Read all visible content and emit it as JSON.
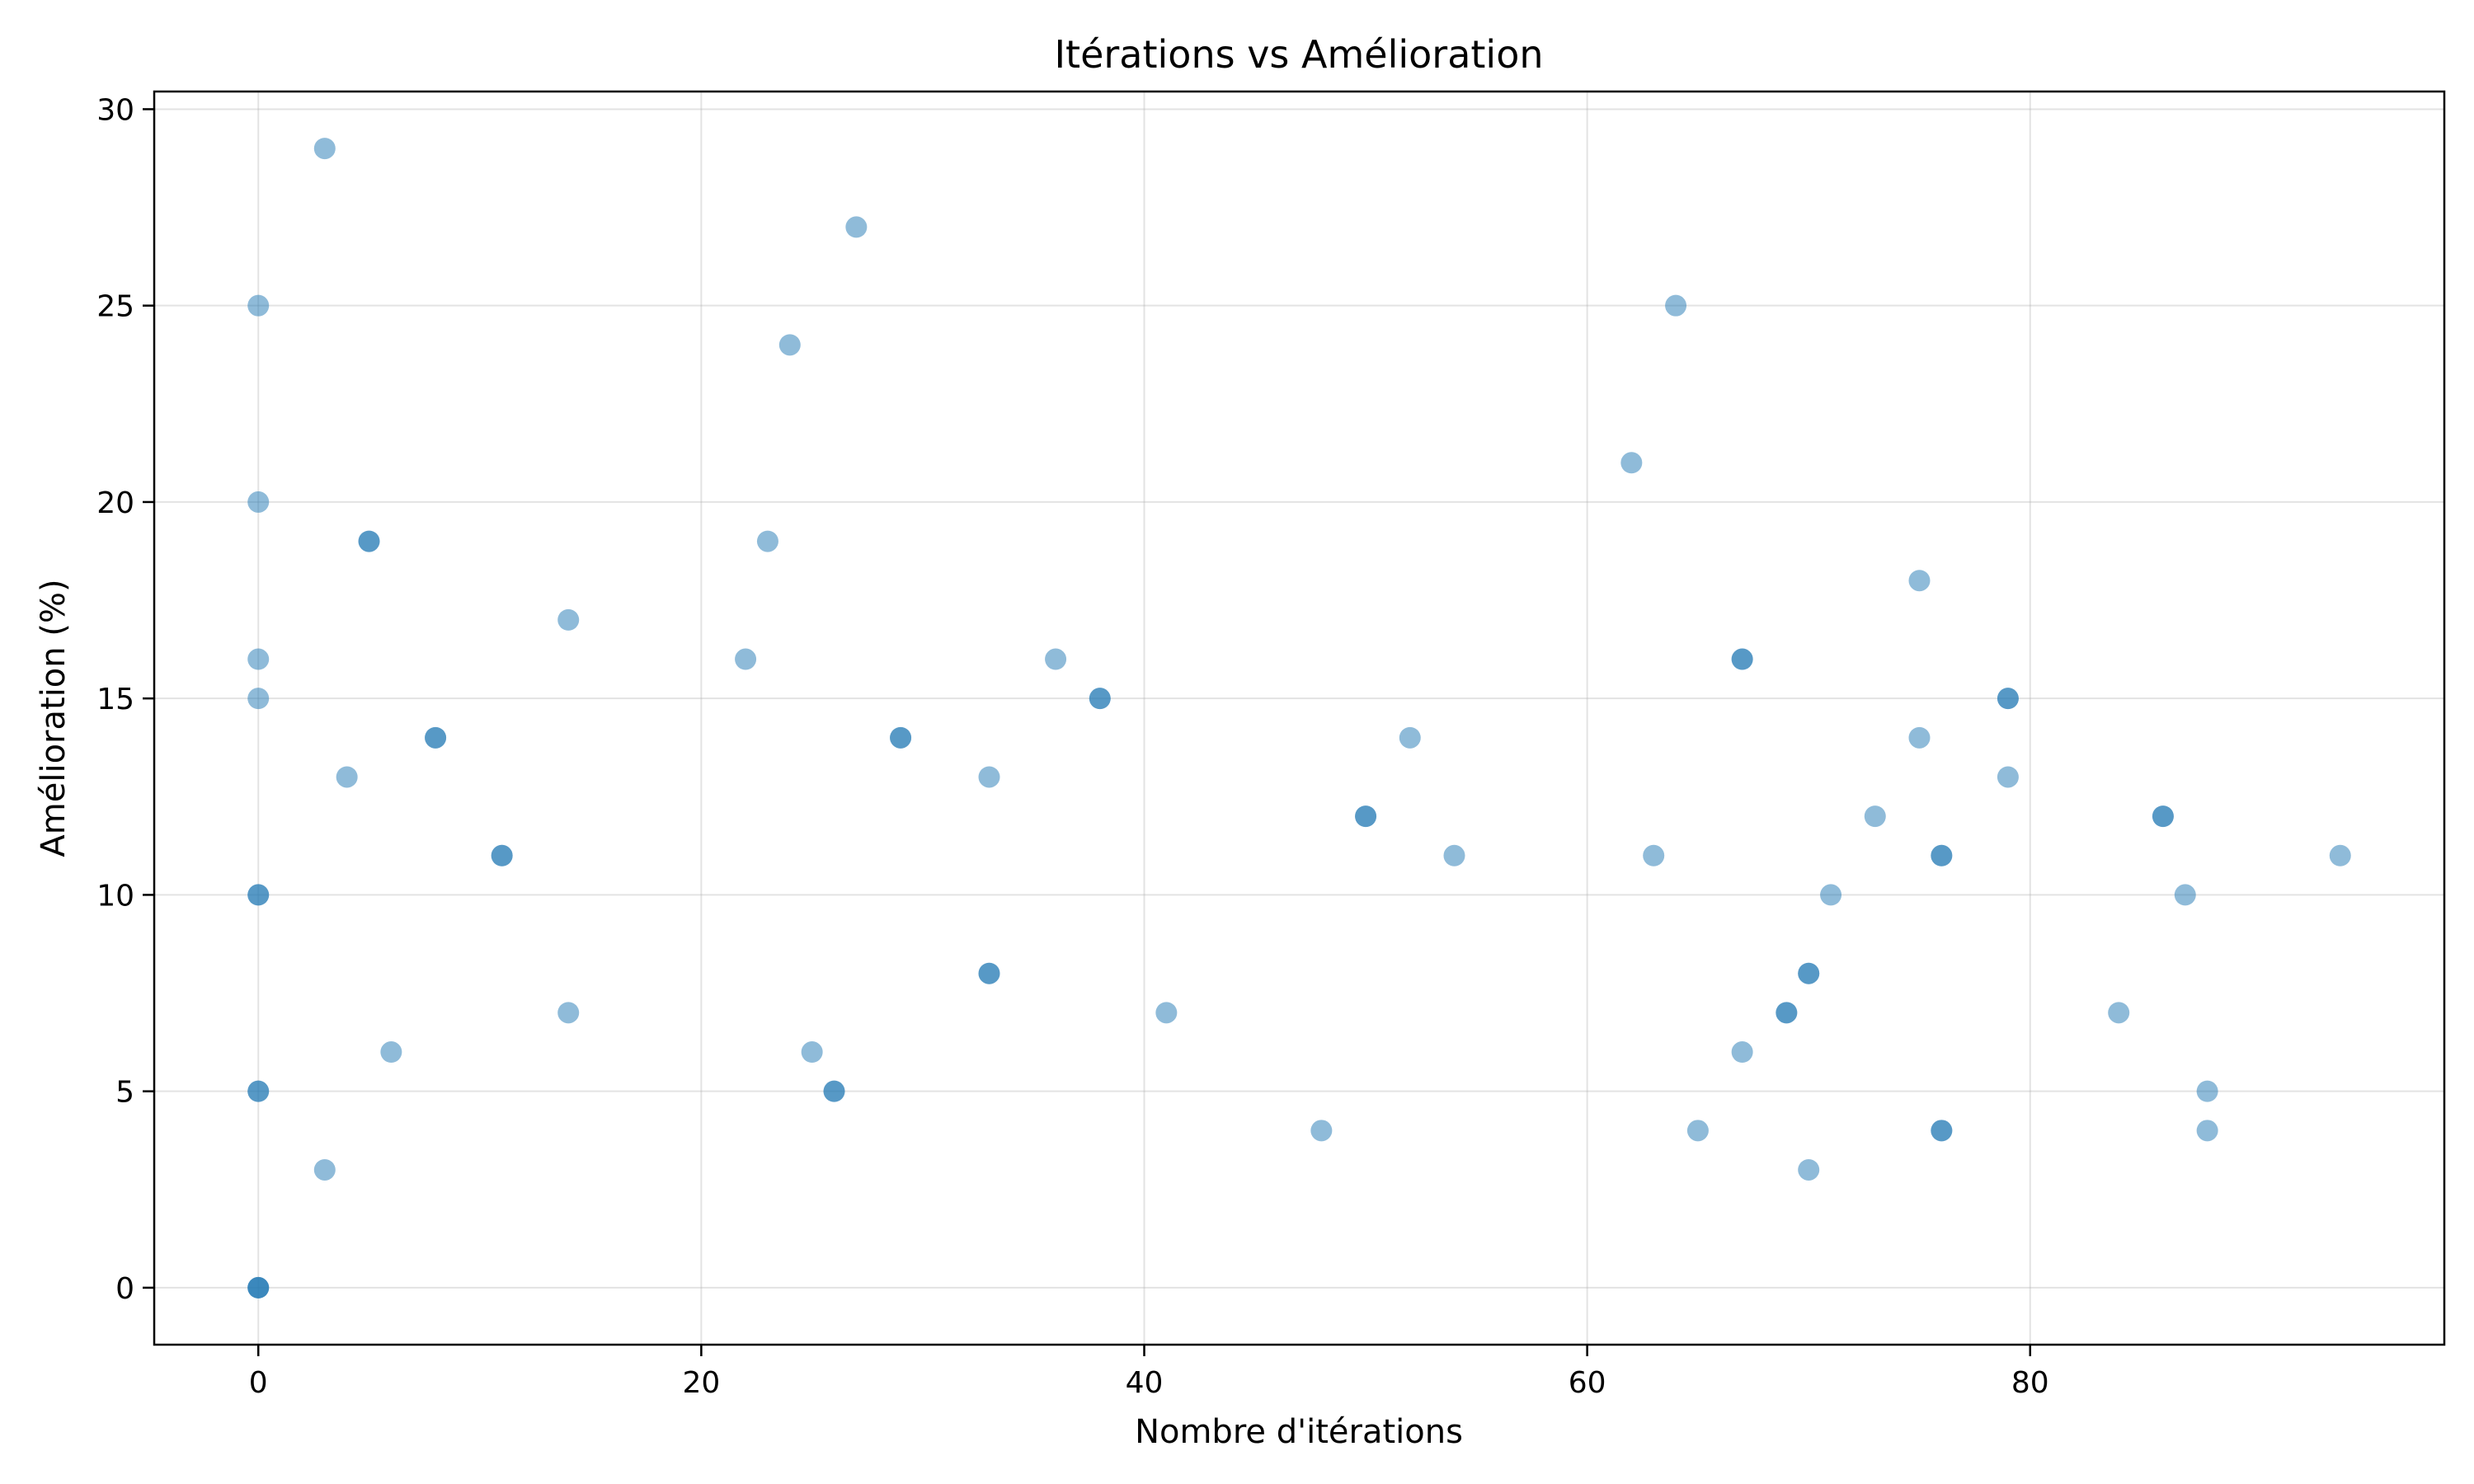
{
  "chart_data": {
    "type": "scatter",
    "title": "Itérations vs Amélioration",
    "xlabel": "Nombre d'itérations",
    "ylabel": "Amélioration (%)",
    "xlim": [
      -4.7,
      98.7
    ],
    "ylim": [
      -1.45,
      30.45
    ],
    "xticks": [
      0,
      20,
      40,
      60,
      80
    ],
    "yticks": [
      0,
      5,
      10,
      15,
      20,
      25,
      30
    ],
    "grid": true,
    "color": "#1f77b4",
    "points": [
      [
        0,
        25
      ],
      [
        0,
        20
      ],
      [
        0,
        16
      ],
      [
        0,
        15
      ],
      [
        0,
        10
      ],
      [
        0,
        10
      ],
      [
        0,
        5
      ],
      [
        0,
        5
      ],
      [
        0,
        0
      ],
      [
        0,
        0
      ],
      [
        0,
        0
      ],
      [
        3,
        29
      ],
      [
        3,
        3
      ],
      [
        4,
        13
      ],
      [
        5,
        19
      ],
      [
        5,
        19
      ],
      [
        6,
        6
      ],
      [
        8,
        14
      ],
      [
        8,
        14
      ],
      [
        11,
        11
      ],
      [
        11,
        11
      ],
      [
        14,
        17
      ],
      [
        14,
        7
      ],
      [
        22,
        16
      ],
      [
        23,
        19
      ],
      [
        24,
        24
      ],
      [
        25,
        6
      ],
      [
        26,
        5
      ],
      [
        26,
        5
      ],
      [
        27,
        27
      ],
      [
        29,
        14
      ],
      [
        29,
        14
      ],
      [
        33,
        13
      ],
      [
        33,
        8
      ],
      [
        33,
        8
      ],
      [
        36,
        16
      ],
      [
        38,
        15
      ],
      [
        38,
        15
      ],
      [
        41,
        7
      ],
      [
        48,
        4
      ],
      [
        50,
        12
      ],
      [
        50,
        12
      ],
      [
        52,
        14
      ],
      [
        54,
        11
      ],
      [
        62,
        21
      ],
      [
        63,
        11
      ],
      [
        64,
        25
      ],
      [
        65,
        4
      ],
      [
        67,
        16
      ],
      [
        67,
        16
      ],
      [
        67,
        6
      ],
      [
        69,
        7
      ],
      [
        69,
        7
      ],
      [
        70,
        8
      ],
      [
        70,
        8
      ],
      [
        70,
        3
      ],
      [
        71,
        10
      ],
      [
        73,
        12
      ],
      [
        75,
        18
      ],
      [
        75,
        14
      ],
      [
        76,
        11
      ],
      [
        76,
        11
      ],
      [
        76,
        4
      ],
      [
        76,
        4
      ],
      [
        79,
        15
      ],
      [
        79,
        15
      ],
      [
        79,
        13
      ],
      [
        84,
        7
      ],
      [
        86,
        12
      ],
      [
        86,
        12
      ],
      [
        87,
        10
      ],
      [
        88,
        5
      ],
      [
        88,
        4
      ],
      [
        94,
        11
      ]
    ]
  }
}
